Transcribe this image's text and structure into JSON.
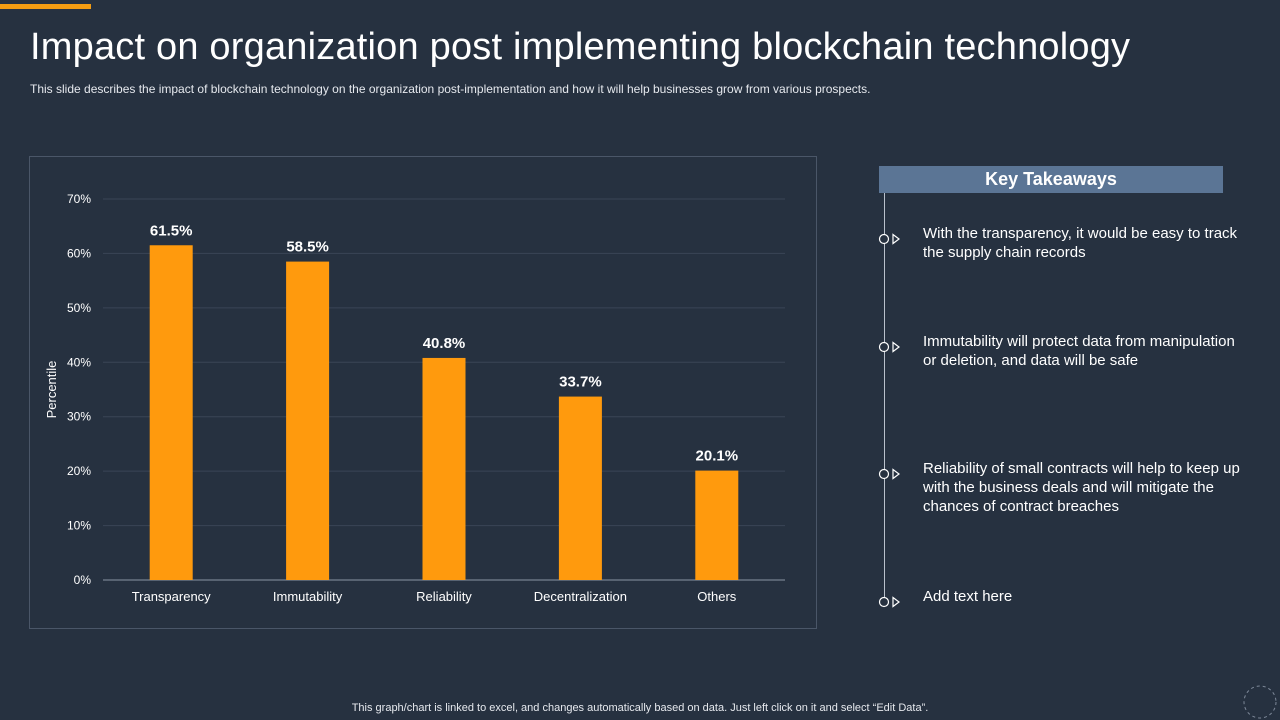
{
  "header": {
    "title": "Impact on organization post implementing blockchain technology",
    "subtitle": "This slide describes the impact of blockchain technology on the organization post-implementation and how it will help businesses grow from various prospects."
  },
  "chart_data": {
    "type": "bar",
    "categories": [
      "Transparency",
      "Immutability",
      "Reliability",
      "Decentralization",
      "Others"
    ],
    "values": [
      61.5,
      58.5,
      40.8,
      33.7,
      20.1
    ],
    "data_labels": [
      "61.5%",
      "58.5%",
      "40.8%",
      "33.7%",
      "20.1%"
    ],
    "ylabel": "Percentile",
    "xlabel": "",
    "ylim": [
      0,
      70
    ],
    "yticks": [
      0,
      10,
      20,
      30,
      40,
      50,
      60,
      70
    ],
    "ytick_labels": [
      "0%",
      "10%",
      "20%",
      "30%",
      "40%",
      "50%",
      "60%",
      "70%"
    ],
    "grid": true,
    "bar_color": "#ff9a0d"
  },
  "takeaways": {
    "heading": "Key Takeaways",
    "items": [
      {
        "text": "With the transparency,  it would be easy to track the supply chain records"
      },
      {
        "text": "Immutability  will protect data from manipulation  or deletion, and data will be safe"
      },
      {
        "text": "Reliability of small contracts will help to keep up with the business deals and will mitigate the chances of contract breaches"
      },
      {
        "text": "Add text here"
      }
    ]
  },
  "footer": {
    "note": "This graph/chart is linked to excel,  and changes automatically based on data. Just left click on it and select “Edit Data”."
  },
  "colors": {
    "background": "#263140",
    "accent": "#f39c12",
    "header_fill": "#5b7595"
  }
}
